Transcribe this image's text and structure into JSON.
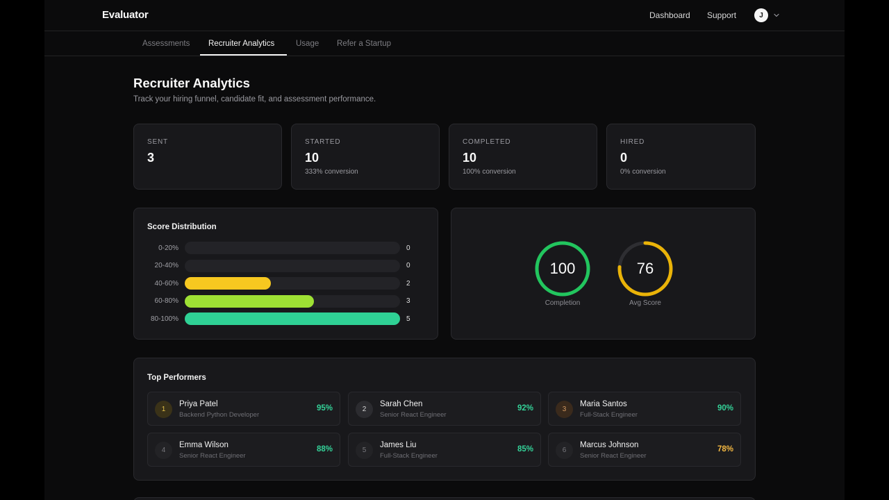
{
  "header": {
    "brand": "Evaluator",
    "nav": [
      "Dashboard",
      "Support"
    ],
    "user_initial": "J",
    "menu_icon": "chevron-down-icon"
  },
  "tabs": [
    {
      "label": "Assessments",
      "active": false
    },
    {
      "label": "Recruiter Analytics",
      "active": true
    },
    {
      "label": "Usage",
      "active": false
    },
    {
      "label": "Refer a Startup",
      "active": false
    }
  ],
  "page": {
    "title": "Recruiter Analytics",
    "subtitle": "Track your hiring funnel, candidate fit, and assessment performance."
  },
  "stats": [
    {
      "label": "SENT",
      "value": "3",
      "sub": ""
    },
    {
      "label": "STARTED",
      "value": "10",
      "sub": "333% conversion"
    },
    {
      "label": "COMPLETED",
      "value": "10",
      "sub": "100% conversion"
    },
    {
      "label": "HIRED",
      "value": "0",
      "sub": "0% conversion"
    }
  ],
  "score_distribution": {
    "title": "Score Distribution",
    "bars": [
      {
        "label": "0-20%",
        "count": 0,
        "color": "#232327"
      },
      {
        "label": "20-40%",
        "count": 0,
        "color": "#232327"
      },
      {
        "label": "40-60%",
        "count": 2,
        "color": "#f7c820"
      },
      {
        "label": "60-80%",
        "count": 3,
        "color": "#9ee134"
      },
      {
        "label": "80-100%",
        "count": 5,
        "color": "#2fd195"
      }
    ],
    "max_count": 5
  },
  "rings": [
    {
      "value": 100,
      "label": "Completion",
      "color": "#22c55e"
    },
    {
      "value": 76,
      "label": "Avg Score",
      "color": "#eab308"
    }
  ],
  "top_performers": {
    "title": "Top Performers",
    "items": [
      {
        "rank": "1",
        "name": "Priya Patel",
        "role": "Backend Python Developer",
        "score": "95%",
        "score_color": "#34d399",
        "rank_bg": "#3a3218",
        "rank_color": "#e3c04b"
      },
      {
        "rank": "2",
        "name": "Sarah Chen",
        "role": "Senior React Engineer",
        "score": "92%",
        "score_color": "#34d399",
        "rank_bg": "#2c2c30",
        "rank_color": "#d6d6d6"
      },
      {
        "rank": "3",
        "name": "Maria Santos",
        "role": "Full-Stack Engineer",
        "score": "90%",
        "score_color": "#34d399",
        "rank_bg": "#3a2a1c",
        "rank_color": "#d49a62"
      },
      {
        "rank": "4",
        "name": "Emma Wilson",
        "role": "Senior React Engineer",
        "score": "88%",
        "score_color": "#34d399",
        "rank_bg": "#232326",
        "rank_color": "#77777c"
      },
      {
        "rank": "5",
        "name": "James Liu",
        "role": "Full-Stack Engineer",
        "score": "85%",
        "score_color": "#34d399",
        "rank_bg": "#232326",
        "rank_color": "#77777c"
      },
      {
        "rank": "6",
        "name": "Marcus Johnson",
        "role": "Senior React Engineer",
        "score": "78%",
        "score_color": "#f5b942",
        "rank_bg": "#232326",
        "rank_color": "#77777c"
      }
    ]
  }
}
